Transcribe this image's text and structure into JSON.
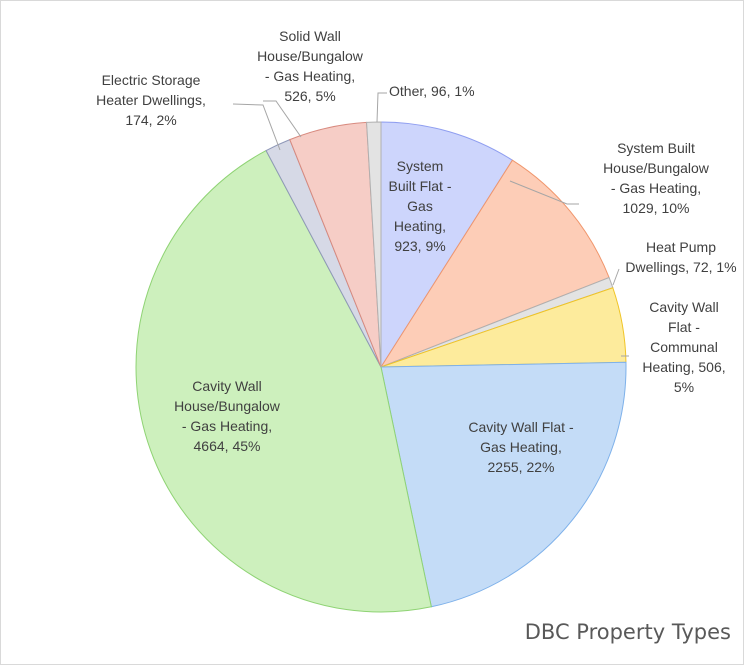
{
  "chart_data": {
    "type": "pie",
    "title": "DBC Property Types",
    "slices": [
      {
        "name": "System Built Flat - Gas Heating",
        "value": 923,
        "percent": "9%",
        "color": "#cdd5fc",
        "stroke": "#8f9ef0"
      },
      {
        "name": "System Built House/Bungalow - Gas Heating",
        "value": 1029,
        "percent": "10%",
        "color": "#fdcdb7",
        "stroke": "#f0966c"
      },
      {
        "name": "Heat Pump Dwellings",
        "value": 72,
        "percent": "1%",
        "color": "#e3e3e3",
        "stroke": "#b0b0b0"
      },
      {
        "name": "Cavity Wall Flat - Communal Heating",
        "value": 506,
        "percent": "5%",
        "color": "#fdeb9c",
        "stroke": "#f0c426"
      },
      {
        "name": "Cavity Wall Flat - Gas Heating",
        "value": 2255,
        "percent": "22%",
        "color": "#c4dcf7",
        "stroke": "#7eb1ea"
      },
      {
        "name": "Cavity Wall House/Bungalow - Gas Heating",
        "value": 4664,
        "percent": "45%",
        "color": "#cdf0bd",
        "stroke": "#8fd374"
      },
      {
        "name": "Electric Storage Heater Dwellings",
        "value": 174,
        "percent": "2%",
        "color": "#d6d9e6",
        "stroke": "#8f98b8"
      },
      {
        "name": "Solid Wall House/Bungalow - Gas Heating",
        "value": 526,
        "percent": "5%",
        "color": "#f6cdc6",
        "stroke": "#d88a7f"
      },
      {
        "name": "Other",
        "value": 96,
        "percent": "1%",
        "color": "#e3e3e3",
        "stroke": "#b0b0b0"
      }
    ],
    "labels": [
      [
        "System",
        "Built Flat -",
        "Gas",
        "Heating,",
        "923, 9%"
      ],
      [
        "System Built",
        "House/Bungalow",
        "- Gas Heating,",
        "1029, 10%"
      ],
      [
        "Heat Pump",
        "Dwellings, 72, 1%"
      ],
      [
        "Cavity Wall",
        "Flat -",
        "Communal",
        "Heating, 506,",
        "5%"
      ],
      [
        "Cavity Wall Flat -",
        "Gas Heating,",
        "2255, 22%"
      ],
      [
        "Cavity Wall",
        "House/Bungalow",
        "- Gas Heating,",
        "4664, 45%"
      ],
      [
        "Electric Storage",
        "Heater Dwellings,",
        "174, 2%"
      ],
      [
        "Solid Wall",
        "House/Bungalow",
        "- Gas Heating,",
        "526, 5%"
      ],
      [
        "Other, 96, 1%"
      ]
    ],
    "legend": "none",
    "start_angle": "12 o'clock, clockwise"
  }
}
